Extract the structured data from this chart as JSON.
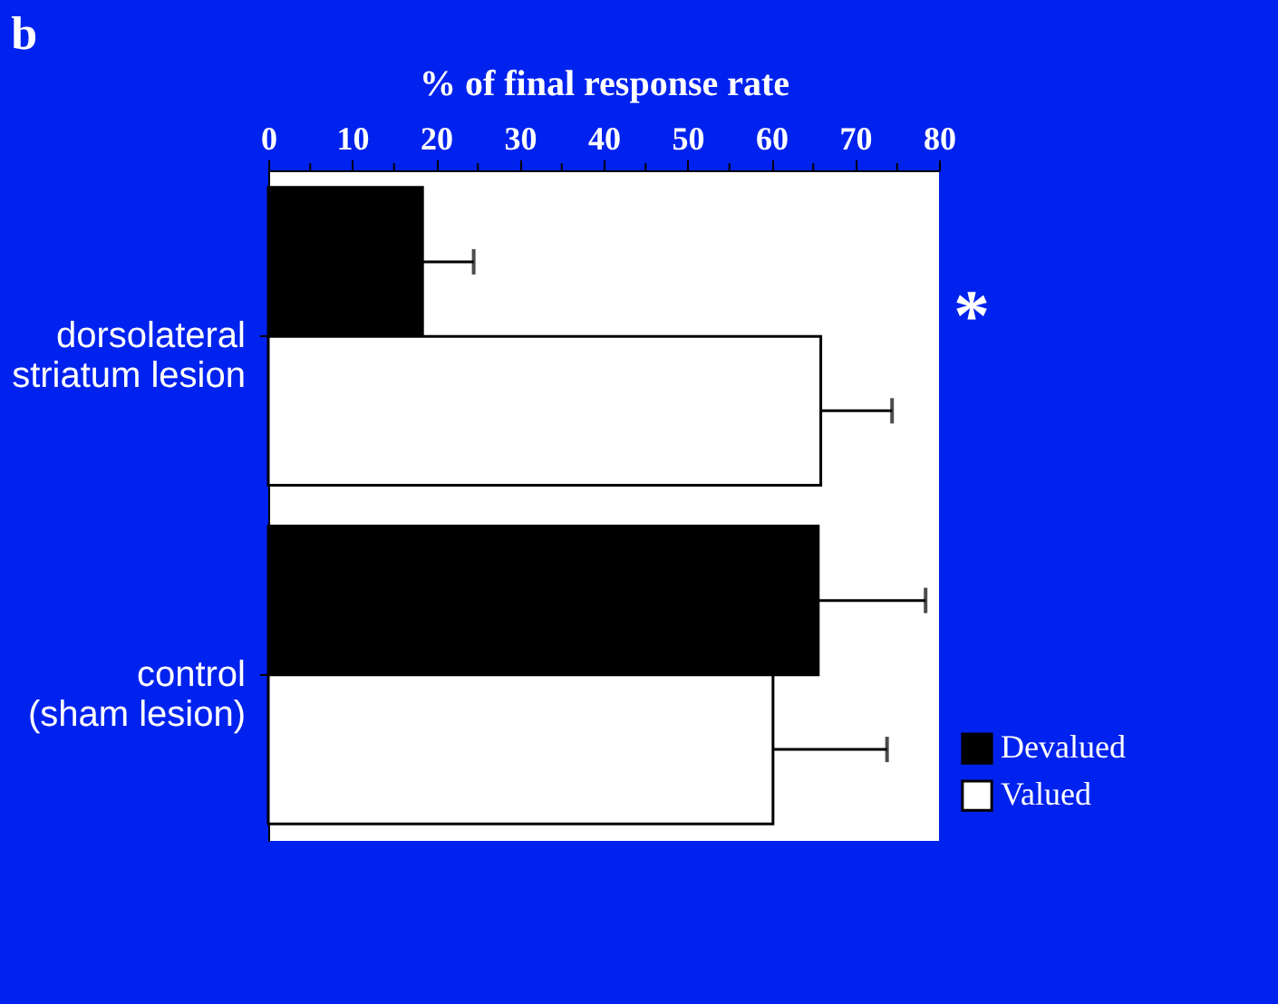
{
  "chart_data": {
    "type": "bar",
    "orientation": "horizontal",
    "title": "b",
    "xlabel": "% of final response rate",
    "categories": [
      "dorsolateral striatum lesion",
      "control (sham lesion)"
    ],
    "series": [
      {
        "name": "Devalued",
        "color": "#000000",
        "values": [
          18.4,
          65.6
        ],
        "errors": [
          [
            18.4,
            24.5
          ],
          [
            65.6,
            78.4
          ]
        ]
      },
      {
        "name": "Valued",
        "color": "#ffffff",
        "values": [
          65.9,
          60.2
        ],
        "errors": [
          [
            65.9,
            74.4
          ],
          [
            60.2,
            73.8
          ]
        ]
      }
    ],
    "xlim": [
      0,
      80
    ],
    "xticks": [
      0,
      {
        "value": 5,
        "label": null
      },
      10,
      {
        "value": 15,
        "label": null
      },
      20,
      {
        "value": 25,
        "label": null
      },
      30,
      {
        "value": 35,
        "label": null
      },
      40,
      {
        "value": 45,
        "label": null
      },
      50,
      {
        "value": 55,
        "label": null
      },
      60,
      {
        "value": 65,
        "label": null
      },
      70,
      {
        "value": 75,
        "label": null
      },
      80
    ],
    "annotations": [
      "*"
    ],
    "legend": "bottom right",
    "grid": false
  }
}
